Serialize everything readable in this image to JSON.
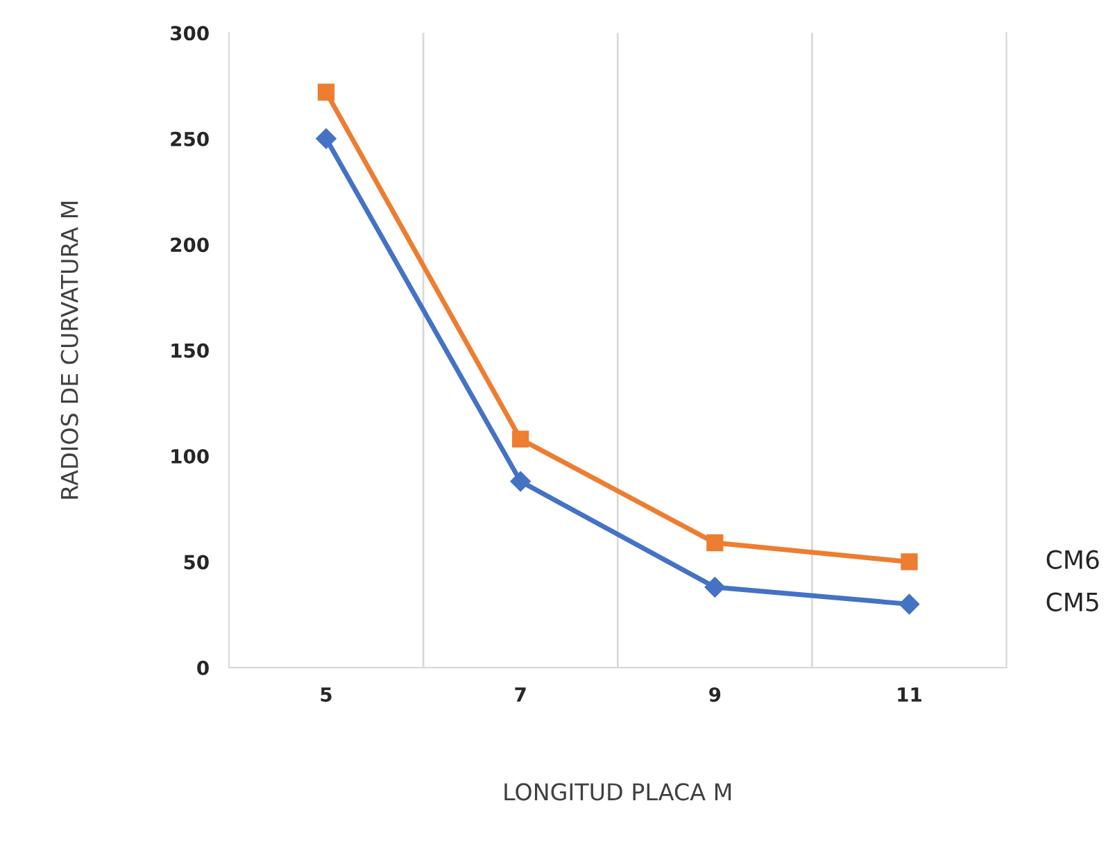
{
  "chart_data": {
    "type": "line",
    "xlabel": "LONGITUD PLACA M",
    "ylabel": "RADIOS DE CURVATURA M",
    "categories": [
      "5",
      "7",
      "9",
      "11"
    ],
    "series": [
      {
        "name": "CM5",
        "color": "#4472c4",
        "marker": "diamond",
        "values": [
          250,
          88,
          38,
          30
        ]
      },
      {
        "name": "CM6",
        "color": "#ed7d31",
        "marker": "square",
        "values": [
          272,
          108,
          59,
          50
        ]
      }
    ],
    "ylim": [
      0,
      300
    ],
    "yticks": [
      0,
      50,
      100,
      150,
      200,
      250,
      300
    ],
    "grid": "x",
    "legend": "right"
  }
}
